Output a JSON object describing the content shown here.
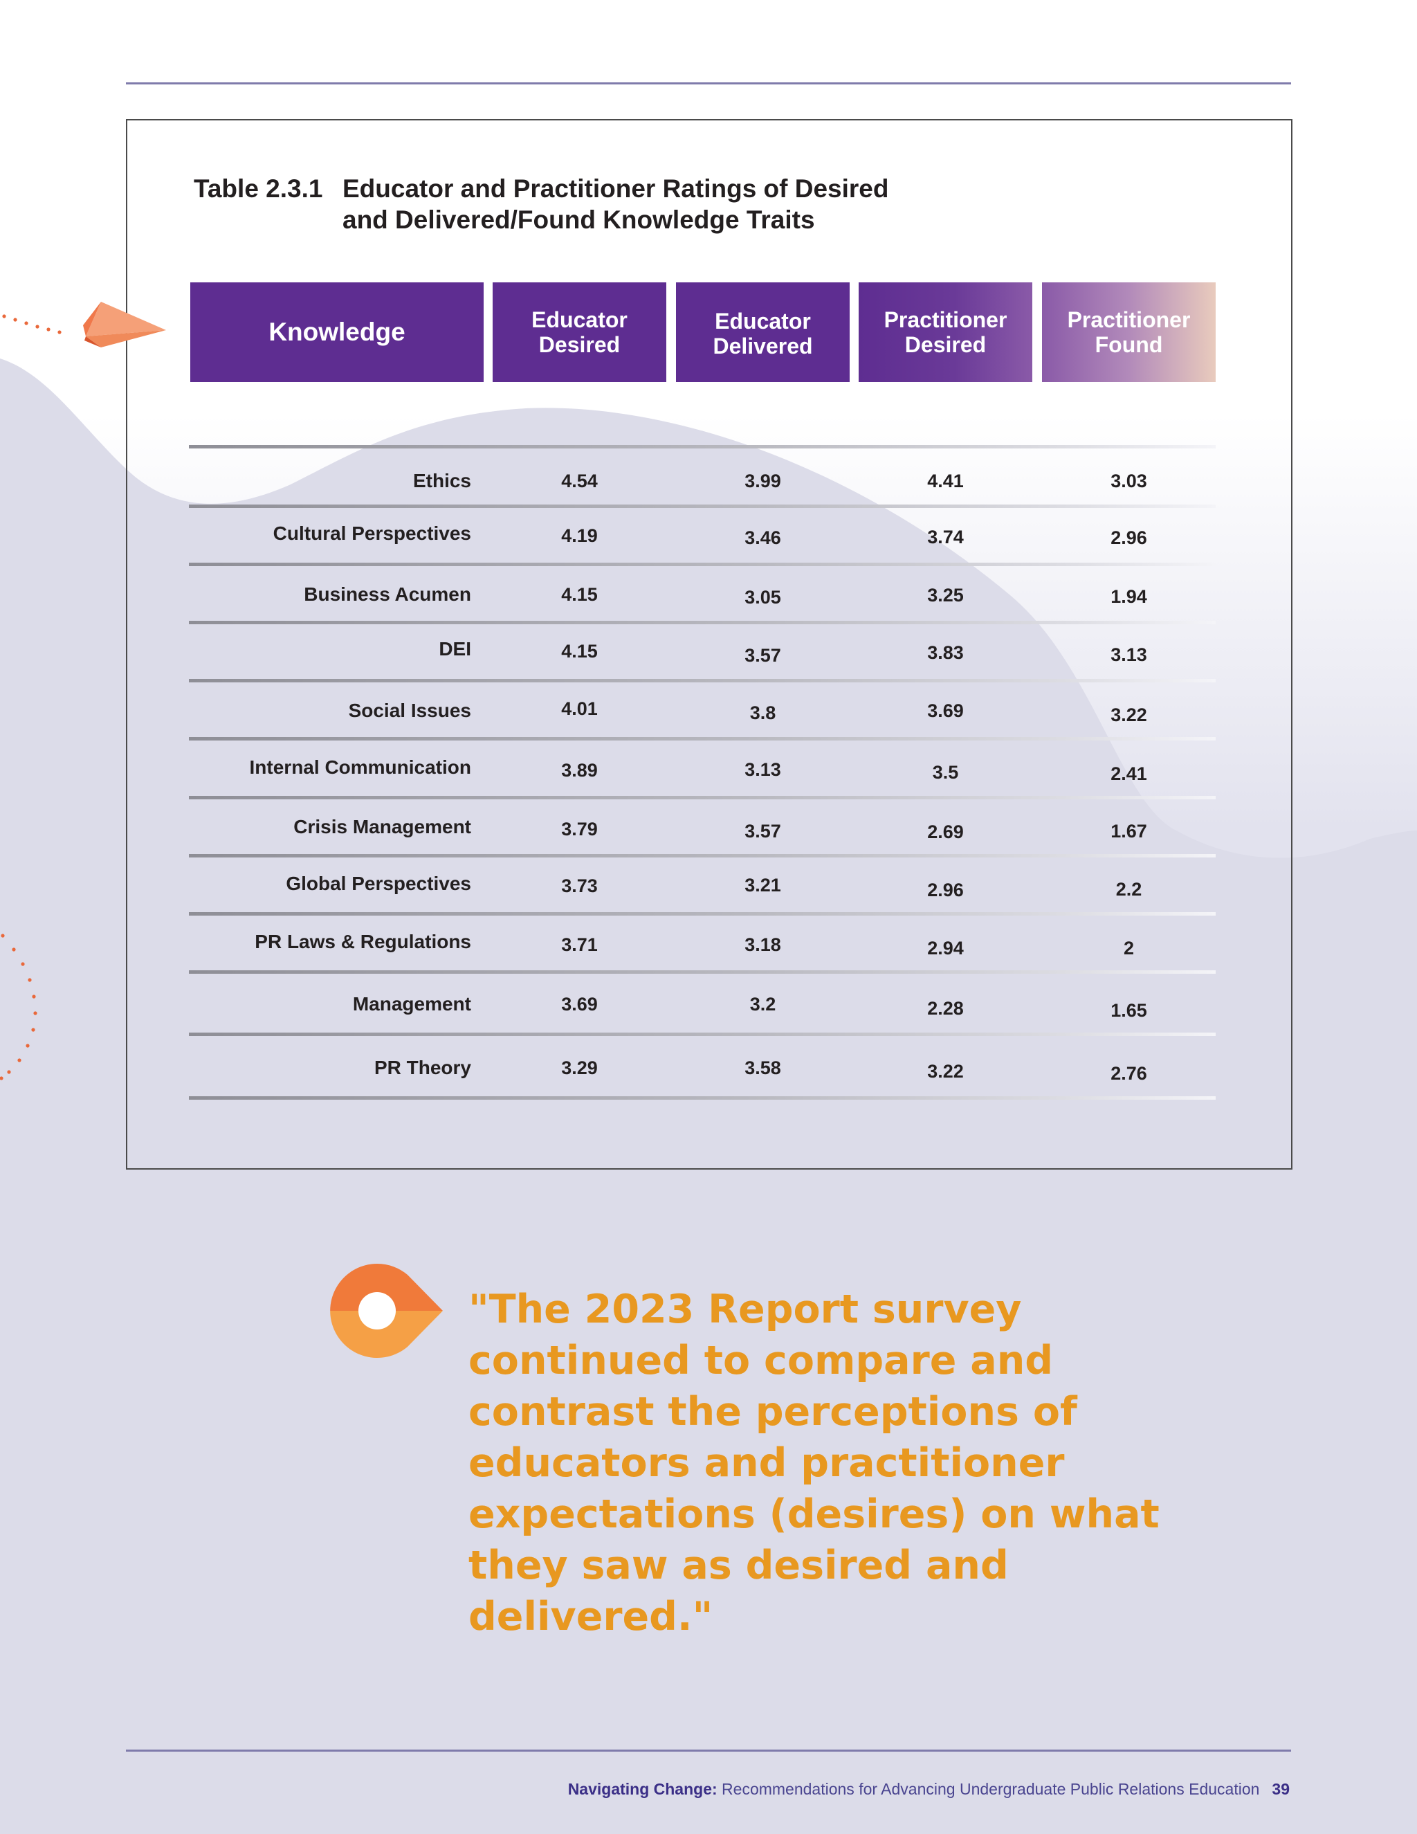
{
  "table": {
    "number": "Table 2.3.1",
    "title_line1": "Educator and Practitioner Ratings of Desired",
    "title_line2": "and Delivered/Found Knowledge Traits",
    "headers": {
      "knowledge": "Knowledge",
      "col1_line1": "Educator",
      "col1_line2": "Desired",
      "col2_line1": "Educator",
      "col2_line2": "Delivered",
      "col3_line1": "Practitioner",
      "col3_line2": "Desired",
      "col4_line1": "Practitioner",
      "col4_line2": "Found"
    },
    "rows": [
      {
        "label": "Ethics",
        "v": [
          "4.54",
          "3.99",
          "4.41",
          "3.03"
        ]
      },
      {
        "label": "Cultural Perspectives",
        "v": [
          "4.19",
          "3.46",
          "3.74",
          "2.96"
        ]
      },
      {
        "label": "Business Acumen",
        "v": [
          "4.15",
          "3.05",
          "3.25",
          "1.94"
        ]
      },
      {
        "label": "DEI",
        "v": [
          "4.15",
          "3.57",
          "3.83",
          "3.13"
        ]
      },
      {
        "label": "Social Issues",
        "v": [
          "4.01",
          "3.8",
          "3.69",
          "3.22"
        ]
      },
      {
        "label": "Internal Communication",
        "v": [
          "3.89",
          "3.13",
          "3.5",
          "2.41"
        ]
      },
      {
        "label": "Crisis Management",
        "v": [
          "3.79",
          "3.57",
          "2.69",
          "1.67"
        ]
      },
      {
        "label": "Global Perspectives",
        "v": [
          "3.73",
          "3.21",
          "2.96",
          "2.2"
        ]
      },
      {
        "label": "PR Laws & Regulations",
        "v": [
          "3.71",
          "3.18",
          "2.94",
          "2"
        ]
      },
      {
        "label": "Management",
        "v": [
          "3.69",
          "3.2",
          "2.28",
          "1.65"
        ]
      },
      {
        "label": "PR Theory",
        "v": [
          "3.29",
          "3.58",
          "3.22",
          "2.76"
        ]
      }
    ]
  },
  "quote": {
    "text": "\"The 2023 Report survey continued to compare and contrast the perceptions of educators and practitioner expectations (desires) on what they saw as desired and delivered.\""
  },
  "footer": {
    "title_bold": "Navigating Change:",
    "subtitle": " Recommendations for Advancing Undergraduate Public Relations Education",
    "page_number": "39"
  },
  "icons": [
    "paper-plane-icon",
    "location-pin-icon",
    "dotted-arc-icon"
  ],
  "colors": {
    "header_purple": "#5e2d91",
    "quote_orange": "#e89820",
    "accent_orange": "#f07a3a",
    "rule": "#7f7bab"
  }
}
